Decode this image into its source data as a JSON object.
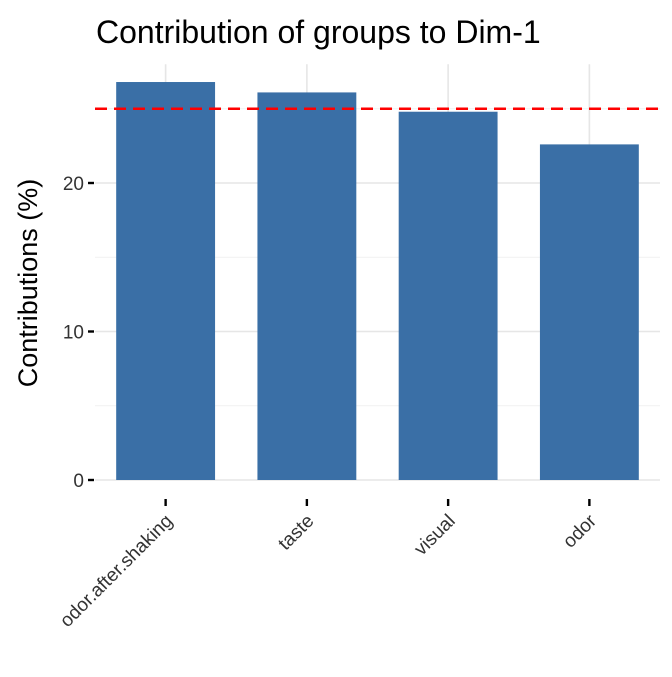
{
  "chart_data": {
    "type": "bar",
    "title": "Contribution of groups to Dim-1",
    "xlabel": "",
    "ylabel": "Contributions (%)",
    "categories": [
      "odor.after.shaking",
      "taste",
      "visual",
      "odor"
    ],
    "values": [
      26.8,
      26.1,
      24.8,
      22.6
    ],
    "ylim": [
      0,
      28
    ],
    "yticks": [
      0,
      10,
      20
    ],
    "y_minor_ticks": [
      5,
      15,
      25
    ],
    "reference_line": {
      "value": 25,
      "style": "dashed"
    },
    "grid": true,
    "colors": {
      "bar": "#3a6fa6",
      "reference_line": "#ff0000"
    }
  }
}
